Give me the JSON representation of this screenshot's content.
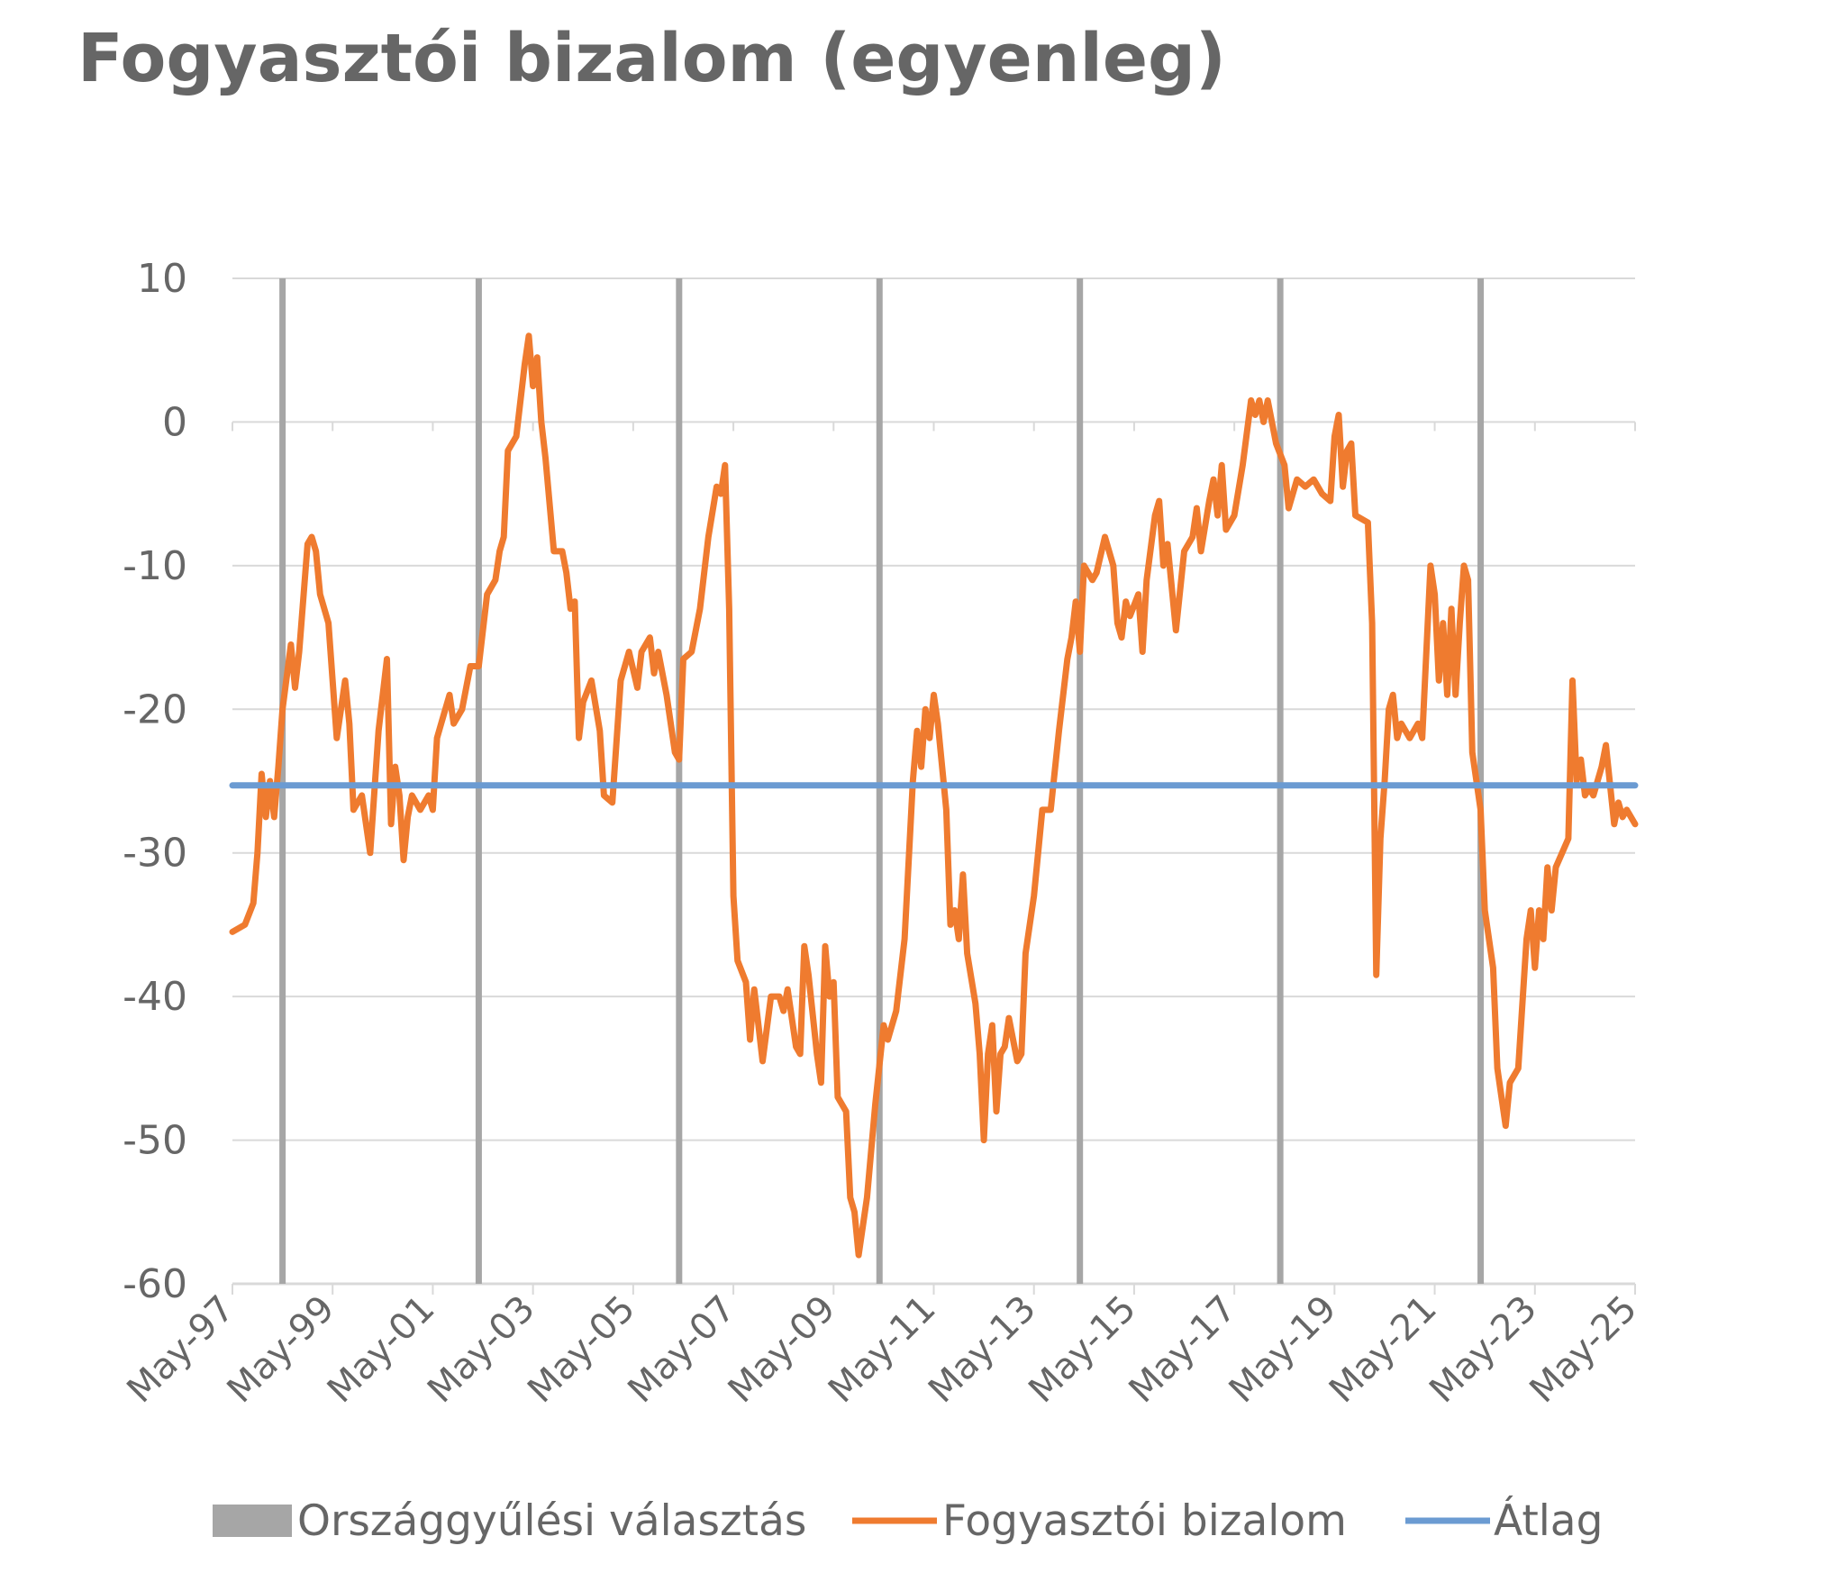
{
  "title": "Fogyasztói bizalom (egyenleg)",
  "colors": {
    "confidence": "#ef7b2f",
    "average": "#6b9bd2",
    "election": "#a6a6a6",
    "grid": "#d9d9d9",
    "text": "#666666"
  },
  "chart_data": {
    "type": "line",
    "title": "Fogyasztói bizalom (egyenleg)",
    "xlabel": "",
    "ylabel": "",
    "ylim": [
      -60,
      10
    ],
    "yticks": [
      10,
      0,
      -10,
      -20,
      -30,
      -40,
      -50,
      -60
    ],
    "xlim": [
      "1997-05",
      "2025-05"
    ],
    "xticks": [
      "May-97",
      "May-99",
      "May-01",
      "May-03",
      "May-05",
      "May-07",
      "May-09",
      "May-11",
      "May-13",
      "May-15",
      "May-17",
      "May-19",
      "May-21",
      "May-23",
      "May-25"
    ],
    "grid": "horizontal",
    "legend_position": "bottom",
    "elections": [
      "1998-05",
      "2002-04",
      "2006-04",
      "2010-04",
      "2014-04",
      "2018-04",
      "2022-04"
    ],
    "average": -25.3,
    "series": [
      {
        "name": "Fogyasztói bizalom",
        "type": "line",
        "points": [
          [
            "1997-05",
            -35.5
          ],
          [
            "1997-08",
            -35
          ],
          [
            "1997-10",
            -33.5
          ],
          [
            "1997-11",
            -30
          ],
          [
            "1997-12",
            -24.5
          ],
          [
            "1998-01",
            -27.5
          ],
          [
            "1998-02",
            -25
          ],
          [
            "1998-03",
            -27.5
          ],
          [
            "1998-04",
            -24
          ],
          [
            "1998-05",
            -20
          ],
          [
            "1998-07",
            -15.5
          ],
          [
            "1998-08",
            -18.5
          ],
          [
            "1998-09",
            -16
          ],
          [
            "1998-11",
            -8.5
          ],
          [
            "1998-12",
            -8
          ],
          [
            "1999-01",
            -9
          ],
          [
            "1999-02",
            -12
          ],
          [
            "1999-04",
            -14
          ],
          [
            "1999-06",
            -22
          ],
          [
            "1999-08",
            -18
          ],
          [
            "1999-09",
            -21
          ],
          [
            "1999-10",
            -27
          ],
          [
            "1999-12",
            -26
          ],
          [
            "2000-02",
            -30
          ],
          [
            "2000-04",
            -21.5
          ],
          [
            "2000-06",
            -16.5
          ],
          [
            "2000-07",
            -28
          ],
          [
            "2000-08",
            -24
          ],
          [
            "2000-09",
            -26
          ],
          [
            "2000-10",
            -30.5
          ],
          [
            "2000-11",
            -27.5
          ],
          [
            "2000-12",
            -26
          ],
          [
            "2001-02",
            -27
          ],
          [
            "2001-04",
            -26
          ],
          [
            "2001-05",
            -27
          ],
          [
            "2001-06",
            -22
          ],
          [
            "2001-07",
            -21
          ],
          [
            "2001-09",
            -19
          ],
          [
            "2001-10",
            -21
          ],
          [
            "2001-12",
            -20
          ],
          [
            "2002-02",
            -17
          ],
          [
            "2002-04",
            -17
          ],
          [
            "2002-06",
            -12
          ],
          [
            "2002-08",
            -11
          ],
          [
            "2002-09",
            -9
          ],
          [
            "2002-10",
            -8
          ],
          [
            "2002-11",
            -2
          ],
          [
            "2003-01",
            -1
          ],
          [
            "2003-03",
            4
          ],
          [
            "2003-04",
            6
          ],
          [
            "2003-05",
            2.5
          ],
          [
            "2003-06",
            4.5
          ],
          [
            "2003-07",
            0
          ],
          [
            "2003-08",
            -2.5
          ],
          [
            "2003-10",
            -9
          ],
          [
            "2003-12",
            -9
          ],
          [
            "2004-01",
            -10.5
          ],
          [
            "2004-02",
            -13
          ],
          [
            "2004-03",
            -12.5
          ],
          [
            "2004-04",
            -22
          ],
          [
            "2004-05",
            -19.5
          ],
          [
            "2004-07",
            -18
          ],
          [
            "2004-09",
            -21.5
          ],
          [
            "2004-10",
            -26
          ],
          [
            "2004-12",
            -26.5
          ],
          [
            "2005-02",
            -18
          ],
          [
            "2005-04",
            -16
          ],
          [
            "2005-06",
            -18.5
          ],
          [
            "2005-07",
            -16
          ],
          [
            "2005-09",
            -15
          ],
          [
            "2005-10",
            -17.5
          ],
          [
            "2005-11",
            -16
          ],
          [
            "2006-01",
            -19
          ],
          [
            "2006-03",
            -23
          ],
          [
            "2006-04",
            -23.5
          ],
          [
            "2006-05",
            -16.5
          ],
          [
            "2006-07",
            -16
          ],
          [
            "2006-09",
            -13
          ],
          [
            "2006-11",
            -8
          ],
          [
            "2007-01",
            -4.5
          ],
          [
            "2007-02",
            -5
          ],
          [
            "2007-03",
            -3
          ],
          [
            "2007-04",
            -13
          ],
          [
            "2007-05",
            -33
          ],
          [
            "2007-06",
            -37.5
          ],
          [
            "2007-08",
            -39
          ],
          [
            "2007-09",
            -43
          ],
          [
            "2007-10",
            -39.5
          ],
          [
            "2007-11",
            -42
          ],
          [
            "2007-12",
            -44.5
          ],
          [
            "2008-02",
            -40
          ],
          [
            "2008-04",
            -40
          ],
          [
            "2008-05",
            -41
          ],
          [
            "2008-06",
            -39.5
          ],
          [
            "2008-08",
            -43.5
          ],
          [
            "2008-09",
            -44
          ],
          [
            "2008-10",
            -36.5
          ],
          [
            "2008-11",
            -38.5
          ],
          [
            "2009-01",
            -44
          ],
          [
            "2009-02",
            -46
          ],
          [
            "2009-03",
            -36.5
          ],
          [
            "2009-04",
            -40
          ],
          [
            "2009-05",
            -39
          ],
          [
            "2009-06",
            -47
          ],
          [
            "2009-08",
            -48
          ],
          [
            "2009-09",
            -54
          ],
          [
            "2009-10",
            -55
          ],
          [
            "2009-11",
            -58
          ],
          [
            "2010-01",
            -54
          ],
          [
            "2010-03",
            -47.5
          ],
          [
            "2010-05",
            -42
          ],
          [
            "2010-06",
            -43
          ],
          [
            "2010-08",
            -41
          ],
          [
            "2010-10",
            -36
          ],
          [
            "2010-12",
            -25
          ],
          [
            "2011-01",
            -21.5
          ],
          [
            "2011-02",
            -24
          ],
          [
            "2011-03",
            -20
          ],
          [
            "2011-04",
            -22
          ],
          [
            "2011-05",
            -19
          ],
          [
            "2011-06",
            -21
          ],
          [
            "2011-08",
            -27
          ],
          [
            "2011-09",
            -35
          ],
          [
            "2011-10",
            -34
          ],
          [
            "2011-11",
            -36
          ],
          [
            "2011-12",
            -31.5
          ],
          [
            "2012-01",
            -37
          ],
          [
            "2012-03",
            -40.5
          ],
          [
            "2012-04",
            -44
          ],
          [
            "2012-05",
            -50
          ],
          [
            "2012-06",
            -44
          ],
          [
            "2012-07",
            -42
          ],
          [
            "2012-08",
            -48
          ],
          [
            "2012-09",
            -44
          ],
          [
            "2012-10",
            -43.5
          ],
          [
            "2012-11",
            -41.5
          ],
          [
            "2013-01",
            -44.5
          ],
          [
            "2013-02",
            -44
          ],
          [
            "2013-03",
            -37
          ],
          [
            "2013-05",
            -33
          ],
          [
            "2013-07",
            -27
          ],
          [
            "2013-09",
            -27
          ],
          [
            "2013-11",
            -21.5
          ],
          [
            "2014-01",
            -16.5
          ],
          [
            "2014-02",
            -15
          ],
          [
            "2014-03",
            -12.5
          ],
          [
            "2014-04",
            -16
          ],
          [
            "2014-05",
            -10
          ],
          [
            "2014-07",
            -11
          ],
          [
            "2014-08",
            -10.5
          ],
          [
            "2014-10",
            -8
          ],
          [
            "2014-12",
            -10
          ],
          [
            "2015-01",
            -14
          ],
          [
            "2015-02",
            -15
          ],
          [
            "2015-03",
            -12.5
          ],
          [
            "2015-04",
            -13.5
          ],
          [
            "2015-06",
            -12
          ],
          [
            "2015-07",
            -16
          ],
          [
            "2015-08",
            -11
          ],
          [
            "2015-10",
            -6.5
          ],
          [
            "2015-11",
            -5.5
          ],
          [
            "2015-12",
            -10
          ],
          [
            "2016-01",
            -8.5
          ],
          [
            "2016-03",
            -14.5
          ],
          [
            "2016-05",
            -9
          ],
          [
            "2016-07",
            -8
          ],
          [
            "2016-08",
            -6
          ],
          [
            "2016-09",
            -9
          ],
          [
            "2016-11",
            -5.5
          ],
          [
            "2016-12",
            -4
          ],
          [
            "2017-01",
            -6.5
          ],
          [
            "2017-02",
            -3
          ],
          [
            "2017-03",
            -7.5
          ],
          [
            "2017-05",
            -6.5
          ],
          [
            "2017-07",
            -3
          ],
          [
            "2017-09",
            1.5
          ],
          [
            "2017-10",
            0.5
          ],
          [
            "2017-11",
            1.5
          ],
          [
            "2017-12",
            0
          ],
          [
            "2018-01",
            1.5
          ],
          [
            "2018-03",
            -1.5
          ],
          [
            "2018-05",
            -3
          ],
          [
            "2018-06",
            -6
          ],
          [
            "2018-08",
            -4
          ],
          [
            "2018-10",
            -4.5
          ],
          [
            "2018-12",
            -4
          ],
          [
            "2019-02",
            -5
          ],
          [
            "2019-04",
            -5.5
          ],
          [
            "2019-05",
            -1
          ],
          [
            "2019-06",
            0.5
          ],
          [
            "2019-07",
            -4.5
          ],
          [
            "2019-08",
            -2
          ],
          [
            "2019-09",
            -1.5
          ],
          [
            "2019-10",
            -6.5
          ],
          [
            "2020-01",
            -7
          ],
          [
            "2020-02",
            -14
          ],
          [
            "2020-03",
            -38.5
          ],
          [
            "2020-04",
            -29
          ],
          [
            "2020-05",
            -25
          ],
          [
            "2020-06",
            -20
          ],
          [
            "2020-07",
            -19
          ],
          [
            "2020-08",
            -22
          ],
          [
            "2020-09",
            -21
          ],
          [
            "2020-11",
            -22
          ],
          [
            "2021-01",
            -21
          ],
          [
            "2021-02",
            -22
          ],
          [
            "2021-04",
            -10
          ],
          [
            "2021-05",
            -12
          ],
          [
            "2021-06",
            -18
          ],
          [
            "2021-07",
            -14
          ],
          [
            "2021-08",
            -19
          ],
          [
            "2021-09",
            -13
          ],
          [
            "2021-10",
            -19
          ],
          [
            "2021-11",
            -14
          ],
          [
            "2021-12",
            -10
          ],
          [
            "2022-01",
            -11
          ],
          [
            "2022-02",
            -23
          ],
          [
            "2022-03",
            -25
          ],
          [
            "2022-04",
            -27
          ],
          [
            "2022-05",
            -34
          ],
          [
            "2022-07",
            -38
          ],
          [
            "2022-08",
            -45
          ],
          [
            "2022-10",
            -49
          ],
          [
            "2022-11",
            -46
          ],
          [
            "2023-01",
            -45
          ],
          [
            "2023-03",
            -36
          ],
          [
            "2023-04",
            -34
          ],
          [
            "2023-05",
            -38
          ],
          [
            "2023-06",
            -34
          ],
          [
            "2023-07",
            -36
          ],
          [
            "2023-08",
            -31
          ],
          [
            "2023-09",
            -34
          ],
          [
            "2023-10",
            -31
          ],
          [
            "2024-01",
            -29
          ],
          [
            "2024-02",
            -18
          ],
          [
            "2024-03",
            -25
          ],
          [
            "2024-04",
            -23.5
          ],
          [
            "2024-05",
            -26
          ],
          [
            "2024-06",
            -25.5
          ],
          [
            "2024-07",
            -26
          ],
          [
            "2024-08",
            -25
          ],
          [
            "2024-09",
            -24
          ],
          [
            "2024-10",
            -22.5
          ],
          [
            "2024-12",
            -28
          ],
          [
            "2025-01",
            -26.5
          ],
          [
            "2025-02",
            -27.5
          ],
          [
            "2025-03",
            -27
          ],
          [
            "2025-04",
            -27.5
          ],
          [
            "2025-05",
            -28
          ]
        ]
      },
      {
        "name": "Átlag",
        "type": "line",
        "points": [
          [
            "1997-05",
            -25.3
          ],
          [
            "2025-05",
            -25.3
          ]
        ]
      }
    ],
    "legend": [
      {
        "label": "Országgyűlési választás",
        "marker": "bar",
        "color": "#a6a6a6"
      },
      {
        "label": "Fogyasztói bizalom",
        "marker": "line",
        "color": "#ef7b2f"
      },
      {
        "label": "Átlag",
        "marker": "line",
        "color": "#6b9bd2"
      }
    ]
  }
}
